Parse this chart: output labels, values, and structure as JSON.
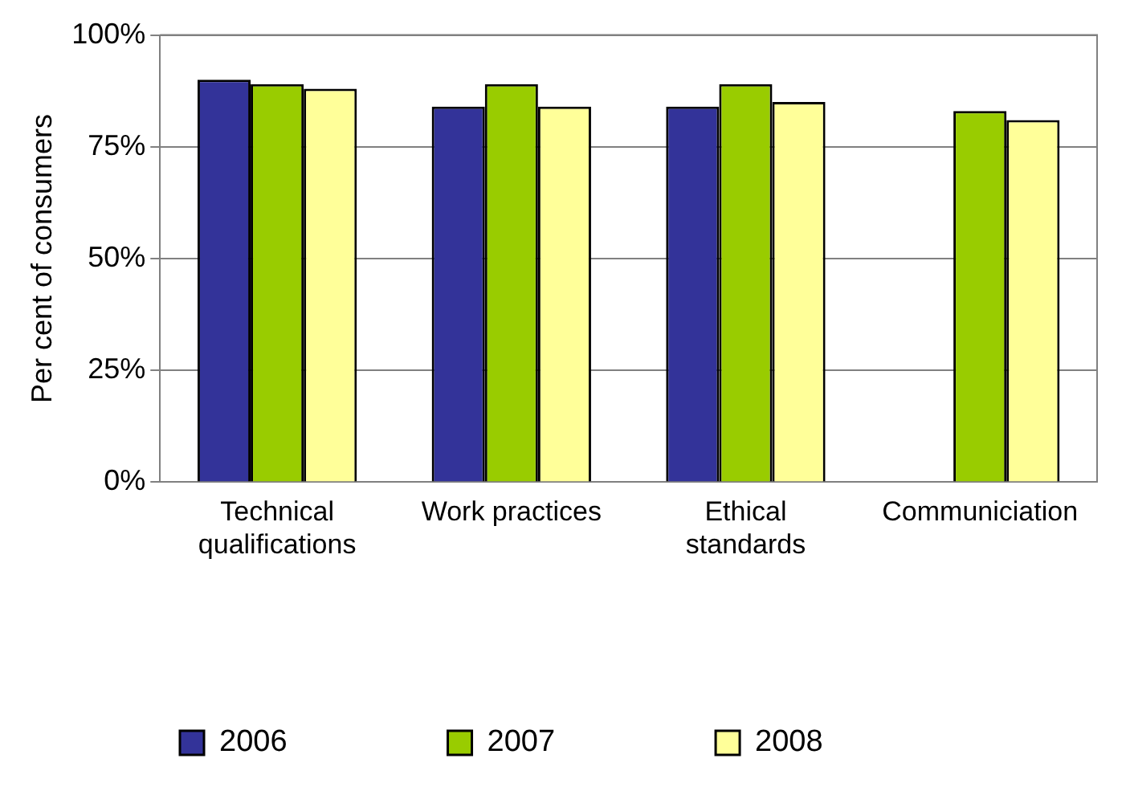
{
  "chart_data": {
    "type": "bar",
    "ylabel": "Per cent of consumers",
    "categories": [
      "Technical qualifications",
      "Work practices",
      "Ethical standards",
      "Communiciation"
    ],
    "series": [
      {
        "name": "2006",
        "color": "#333399",
        "values": [
          90,
          84,
          84,
          null
        ]
      },
      {
        "name": "2007",
        "color": "#99cc00",
        "values": [
          89,
          89,
          89,
          83
        ]
      },
      {
        "name": "2008",
        "color": "#ffff99",
        "values": [
          88,
          84,
          85,
          81
        ]
      }
    ],
    "ylim": [
      0,
      100
    ],
    "yticks": [
      {
        "value": 0,
        "label": "0%"
      },
      {
        "value": 25,
        "label": "25%"
      },
      {
        "value": 50,
        "label": "50%"
      },
      {
        "value": 75,
        "label": "75%"
      },
      {
        "value": 100,
        "label": "100%"
      }
    ],
    "grid": "y",
    "legend": "bottom"
  }
}
